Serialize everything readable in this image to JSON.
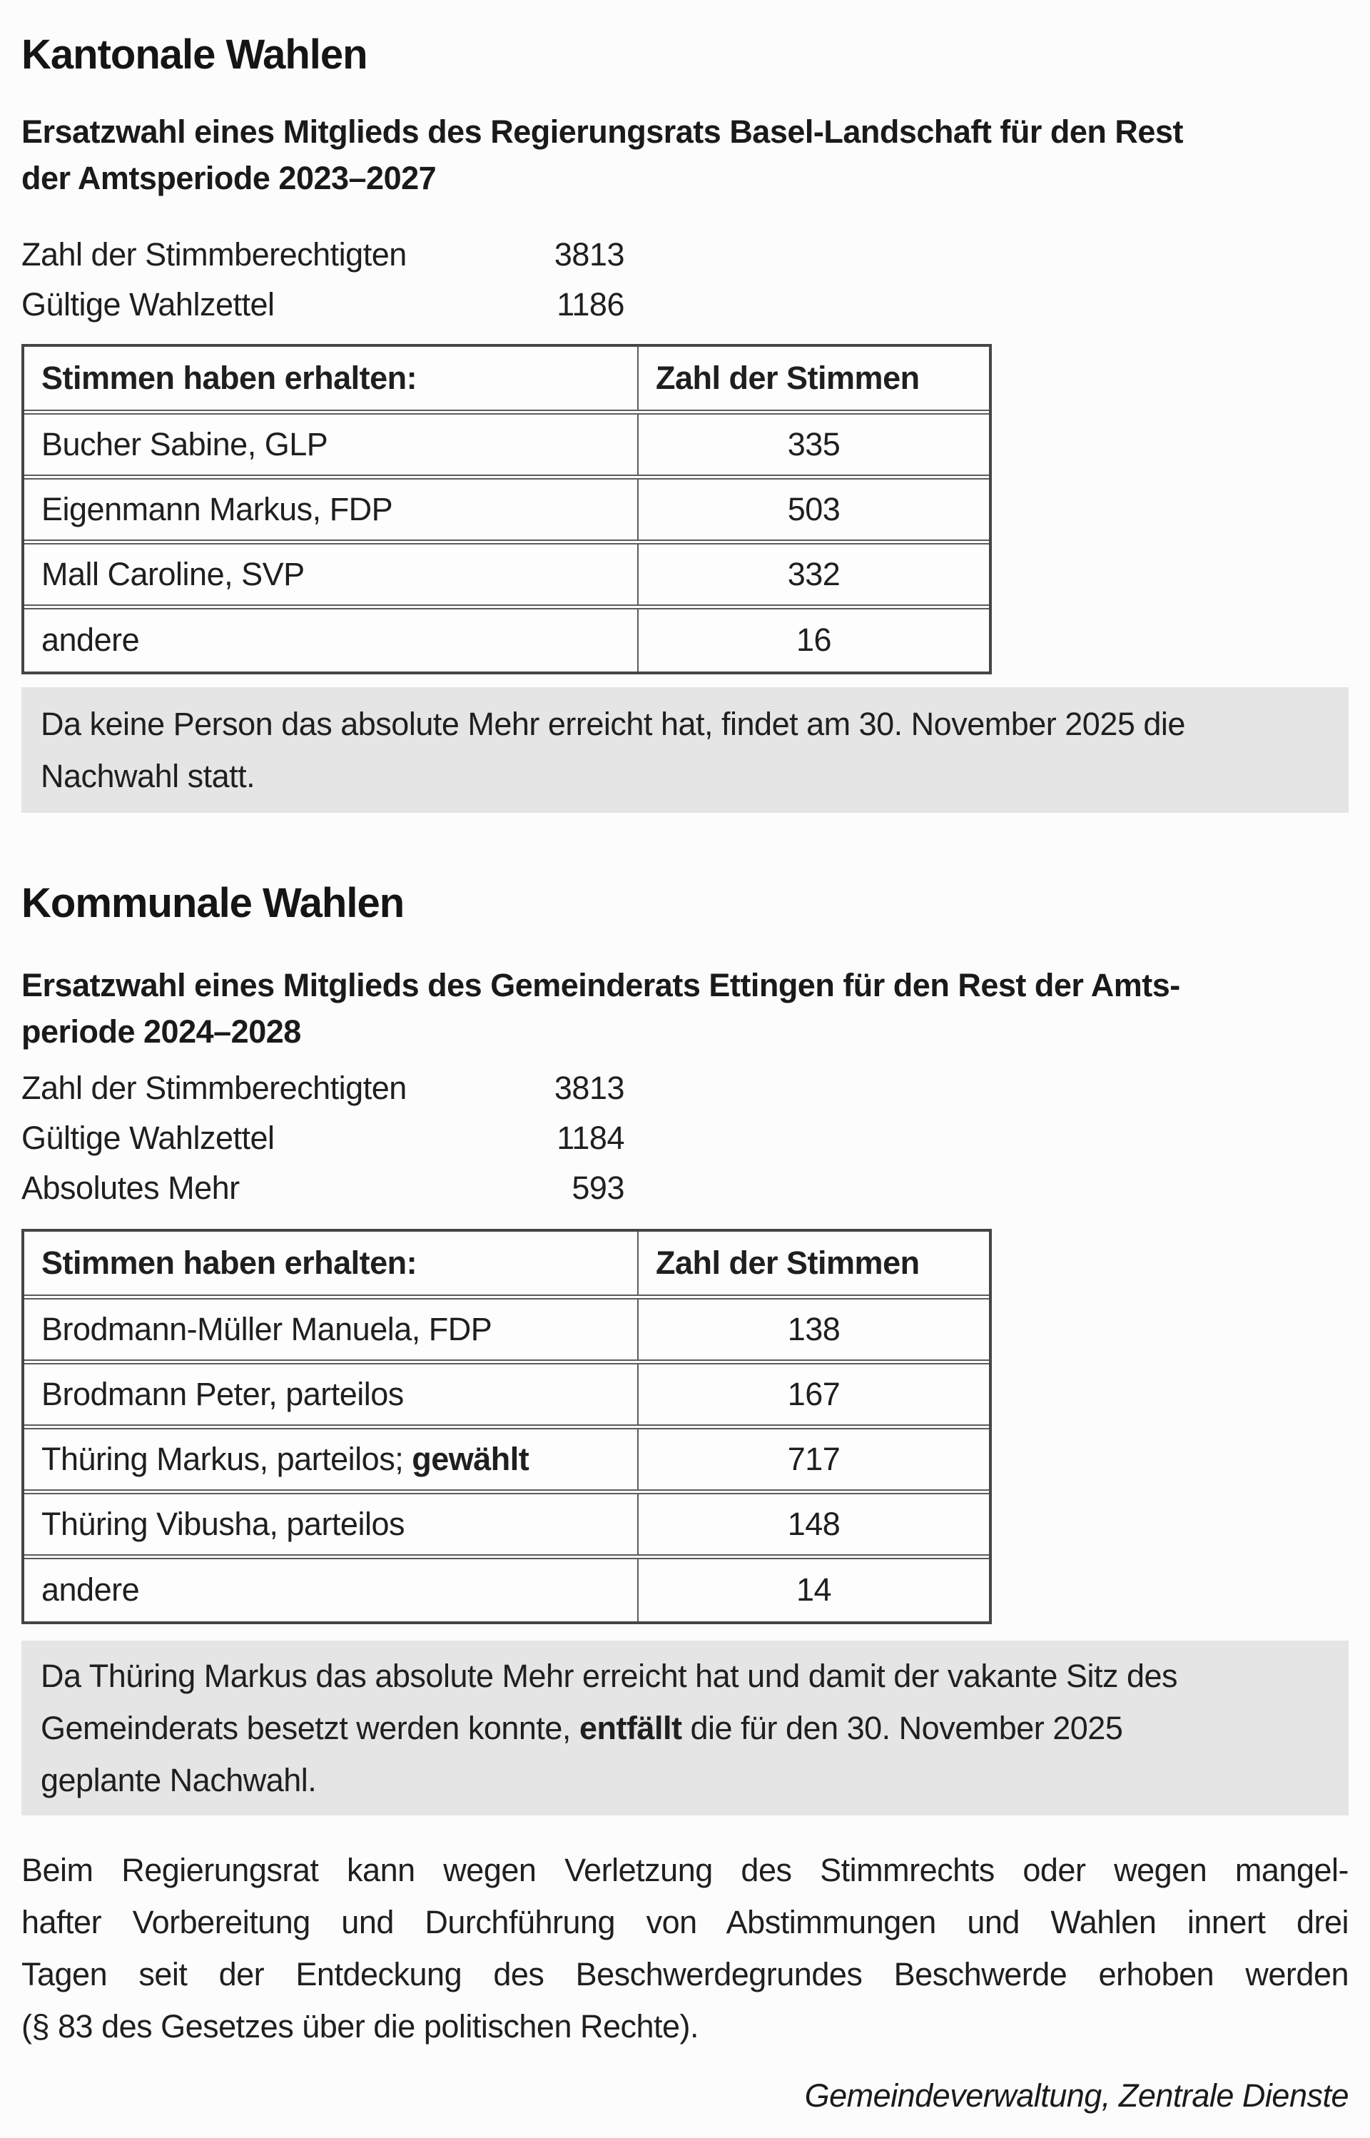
{
  "colors": {
    "page_background": "#fcfcfc",
    "text": "#1f1f1f",
    "note_background": "#e5e5e5",
    "table_border": "#454545"
  },
  "kantonal": {
    "title": "Kantonale Wahlen",
    "subtitle_lines": [
      "Ersatzwahl eines Mitglieds des Regierungsrats Basel-Landschaft für den Rest",
      "der Amtsperiode 2023–2027"
    ],
    "stats": [
      {
        "label": "Zahl der Stimmberechtigten",
        "value": "3813"
      },
      {
        "label": "Gültige Wahlzettel",
        "value": "1186"
      }
    ],
    "table": {
      "col1_header": "Stimmen haben erhalten:",
      "col2_header": "Zahl der Stimmen",
      "rows": [
        {
          "name": "Bucher Sabine, GLP",
          "votes": "335"
        },
        {
          "name": "Eigenmann Markus, FDP",
          "votes": "503"
        },
        {
          "name": "Mall Caroline, SVP",
          "votes": "332"
        },
        {
          "name": "andere",
          "votes": "16"
        }
      ]
    },
    "note_lines": [
      "Da keine Person das absolute Mehr erreicht hat, findet am 30. November 2025 die",
      "Nachwahl statt."
    ]
  },
  "kommunal": {
    "title": "Kommunale Wahlen",
    "subtitle_lines": [
      "Ersatzwahl eines Mitglieds des Gemeinderats Ettingen für den Rest der Amts-",
      "periode 2024–2028"
    ],
    "stats": [
      {
        "label": "Zahl der Stimmberechtigten",
        "value": "3813"
      },
      {
        "label": "Gültige Wahlzettel",
        "value": "1184"
      },
      {
        "label": "Absolutes Mehr",
        "value": "593"
      }
    ],
    "table": {
      "col1_header": "Stimmen haben erhalten:",
      "col2_header": "Zahl der Stimmen",
      "rows": [
        {
          "name": "Brodmann-Müller Manuela, FDP",
          "votes": "138"
        },
        {
          "name": "Brodmann Peter, parteilos",
          "votes": "167"
        },
        {
          "name": "Thüring Markus, parteilos; ",
          "name_bold": "gewählt",
          "votes": "717"
        },
        {
          "name": "Thüring Vibusha, parteilos",
          "votes": "148"
        },
        {
          "name": "andere",
          "votes": "14"
        }
      ]
    },
    "note": {
      "line1": "Da Thüring Markus das absolute Mehr erreicht hat und damit der vakante Sitz des",
      "line2_pre": "Gemeinderats besetzt werden konnte, ",
      "line2_bold": "entfällt",
      "line2_post": " die für den 30. November 2025",
      "line3": "geplante Nachwahl."
    }
  },
  "footer": {
    "paragraph_lines": [
      "Beim Regierungsrat kann wegen Verletzung des Stimmrechts oder wegen mangel-",
      "hafter Vorbereitung und Durchführung von Abstimmungen und Wahlen innert drei",
      "Tagen seit der Entdeckung des Beschwerdegrundes Beschwerde erhoben werden",
      "(§ 83 des Gesetzes über die politischen Rechte)."
    ],
    "signature": "Gemeindeverwaltung, Zentrale Dienste"
  }
}
